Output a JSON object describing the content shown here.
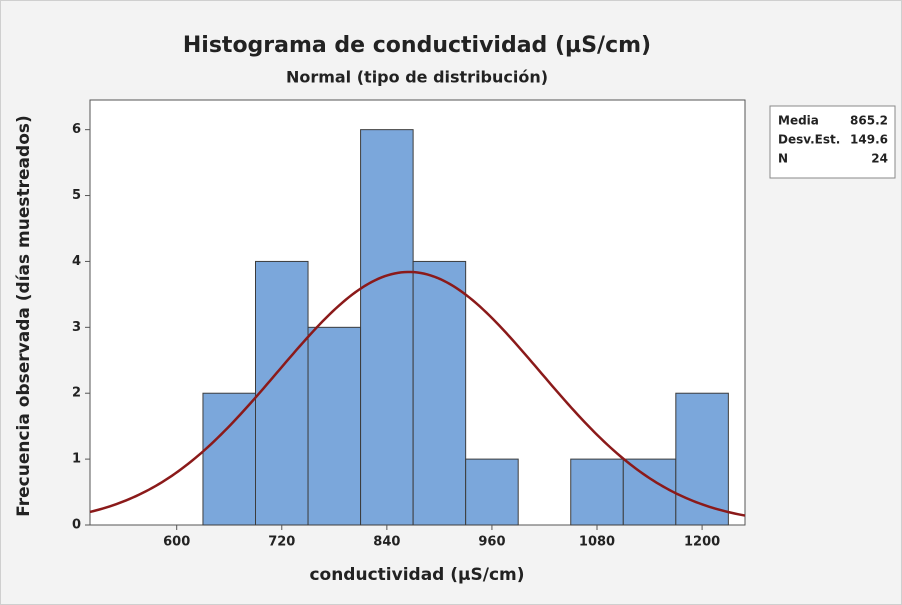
{
  "chart_data": {
    "type": "histogram",
    "title": "Histograma de conductividad (µS/cm)",
    "subtitle": "Normal (tipo de distribución)",
    "x_label": "conductividad (µS/cm)",
    "y_label": "Frecuencia observada (días muestreados)",
    "bins": [
      630,
      690,
      750,
      810,
      870,
      930,
      990,
      1050,
      1110,
      1170,
      1230
    ],
    "counts": [
      2,
      4,
      3,
      6,
      4,
      1,
      0,
      1,
      1,
      2
    ],
    "color": "#7ba7db",
    "fit_color": "#8b1a1a",
    "xlim": [
      501,
      1249
    ],
    "xticks": [
      600,
      720,
      840,
      960,
      1080,
      1200
    ],
    "ylim": [
      0,
      6.45
    ],
    "yticks": [
      0,
      1,
      2,
      3,
      4,
      5,
      6
    ],
    "stats": [
      {
        "label": "Media",
        "value": 865.2
      },
      {
        "label": "Desv.Est.",
        "value": 149.6
      },
      {
        "label": "N",
        "value": 24
      }
    ]
  }
}
